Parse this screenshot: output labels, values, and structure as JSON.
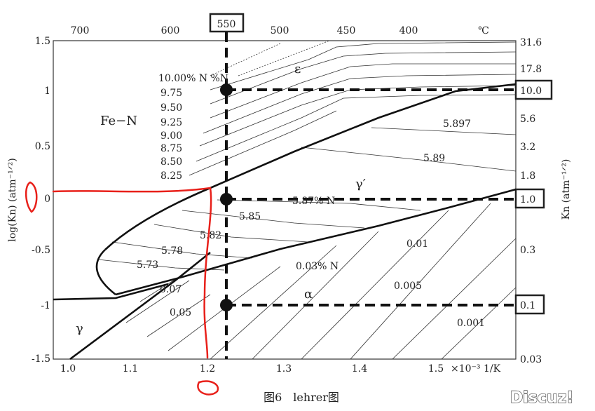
{
  "chart_data": {
    "type": "line",
    "xlabel_top": "℃",
    "x_unit": "×10⁻³ 1/K",
    "ylabel_left": "log(Kn) (atm⁻¹ᐟ²)",
    "ylabel_right": "Kn (atm⁻¹ᐟ²)",
    "xlim": [
      0.98,
      1.6
    ],
    "ylim": [
      -1.5,
      1.5
    ],
    "x_ticks": [
      "1.0",
      "1.1",
      "1.2",
      "1.3",
      "1.4",
      "1.5"
    ],
    "y_ticks_left": [
      "1.5",
      "1",
      "0.5",
      "0",
      "-0.5",
      "-1",
      "-1.5"
    ],
    "y_ticks_left_values": [
      1.5,
      1,
      0.5,
      0,
      -0.5,
      -1,
      -1.5
    ],
    "top_temps": [
      "700",
      "600",
      "550",
      "500",
      "450",
      "400"
    ],
    "top_temp_values": [
      700,
      600,
      550,
      500,
      450,
      400
    ],
    "right_ticks": [
      "31.6",
      "17.8",
      "10.0",
      "5.6",
      "3.2",
      "1.8",
      "1.0",
      "0.3",
      "0.1",
      "0.03"
    ],
    "right_tick_values": [
      31.6,
      17.8,
      10.0,
      5.6,
      3.2,
      1.8,
      1.0,
      0.3,
      0.1,
      0.03
    ],
    "boxed_labels": {
      "top": "550",
      "kn_high": "10.0",
      "kn_mid": "1.0",
      "kn_low": "0.1"
    },
    "phase_labels": {
      "fe_n": "Fe−N",
      "epsilon": "ε",
      "gamma_prime": "γ′",
      "alpha": "α",
      "gamma": "γ"
    },
    "epsilon_iso": {
      "header": "10.00% N %N",
      "values": [
        "9.75",
        "9.50",
        "9.25",
        "9.00",
        "8.75",
        "8.50",
        "8.25"
      ]
    },
    "gamma_prime_iso": [
      "5.897",
      "5.89",
      "5.87% N",
      "5.85",
      "5.82",
      "5.78",
      "5.73"
    ],
    "alpha_iso": [
      "0.07",
      "0.05",
      "0.03% N",
      "0.01",
      "0.005",
      "0.001"
    ],
    "marked_points": [
      {
        "x": 1.218,
        "logKn": 1.0
      },
      {
        "x": 1.218,
        "logKn": 0.0
      },
      {
        "x": 1.218,
        "logKn": -1.0
      }
    ],
    "phase_boundaries": [
      {
        "name": "epsilon/gamma_prime",
        "x": [
          1.0,
          1.1,
          1.2,
          1.3,
          1.4,
          1.5,
          1.6
        ],
        "logKn": [
          -0.25,
          -0.05,
          0.1,
          0.32,
          0.58,
          0.85,
          1.06
        ]
      },
      {
        "name": "gamma_prime/alpha",
        "x": [
          1.12,
          1.2,
          1.3,
          1.4,
          1.5,
          1.6
        ],
        "logKn": [
          -0.93,
          -0.78,
          -0.55,
          -0.3,
          -0.02,
          0.1
        ]
      },
      {
        "name": "gamma/alpha",
        "x": [
          0.98,
          1.1,
          1.2
        ],
        "logKn": [
          -0.95,
          -0.93,
          -0.72
        ]
      }
    ],
    "grid": false
  },
  "caption": "图6　lehrer图",
  "watermark": "Discuz!"
}
